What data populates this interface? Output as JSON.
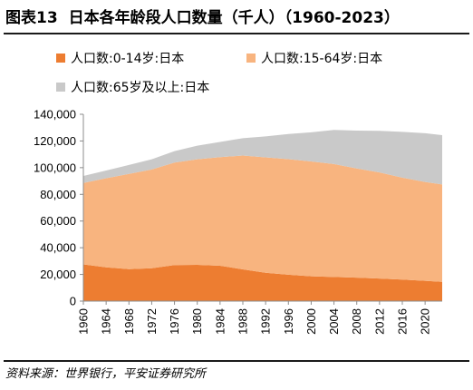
{
  "header": {
    "figure_number": "图表13",
    "title": "日本各年龄段人口数量（千人）（1960-2023）"
  },
  "source_note": "资料来源：世界银行，平安证券研究所",
  "colors": {
    "age_0_14": "#ED7D31",
    "age_15_64": "#F8B47F",
    "age_65_plus": "#C9C9C9",
    "axis": "#8c8c8c"
  },
  "chart_data": {
    "type": "area",
    "stacked": true,
    "x_start": 1960,
    "x_end": 2023,
    "x_ticks": [
      "1960",
      "1964",
      "1968",
      "1972",
      "1976",
      "1980",
      "1984",
      "1988",
      "1992",
      "1996",
      "2000",
      "2004",
      "2008",
      "2012",
      "2016",
      "2020"
    ],
    "y_ticks": [
      "0",
      "20,000",
      "40,000",
      "60,000",
      "80,000",
      "100,000",
      "120,000",
      "140,000"
    ],
    "ylim": [
      0,
      140000
    ],
    "grid": false,
    "legend_position": "top",
    "legend": [
      "人口数:0-14岁:日本",
      "人口数:15-64岁:日本",
      "人口数:65岁及以上:日本"
    ],
    "key_years": [
      1960,
      1964,
      1968,
      1972,
      1976,
      1980,
      1984,
      1988,
      1992,
      1996,
      2000,
      2004,
      2008,
      2012,
      2016,
      2020,
      2023
    ],
    "series": [
      {
        "name": "人口数:0-14岁:日本",
        "values": [
          27500,
          25300,
          24000,
          24600,
          27000,
          27200,
          26500,
          23800,
          21200,
          19800,
          18600,
          18100,
          17600,
          16900,
          16100,
          15200,
          14400
        ]
      },
      {
        "name": "人口数:15-64岁:日本",
        "values": [
          61000,
          66800,
          71300,
          74000,
          76800,
          79100,
          81400,
          85300,
          86500,
          86600,
          86100,
          84600,
          81800,
          79500,
          76400,
          74100,
          73000
        ]
      },
      {
        "name": "人口数:65岁及以上:日本",
        "values": [
          5300,
          5800,
          6700,
          7700,
          8600,
          10200,
          11400,
          13000,
          15700,
          18800,
          21800,
          25600,
          28400,
          31200,
          34300,
          36500,
          37000
        ]
      }
    ]
  }
}
